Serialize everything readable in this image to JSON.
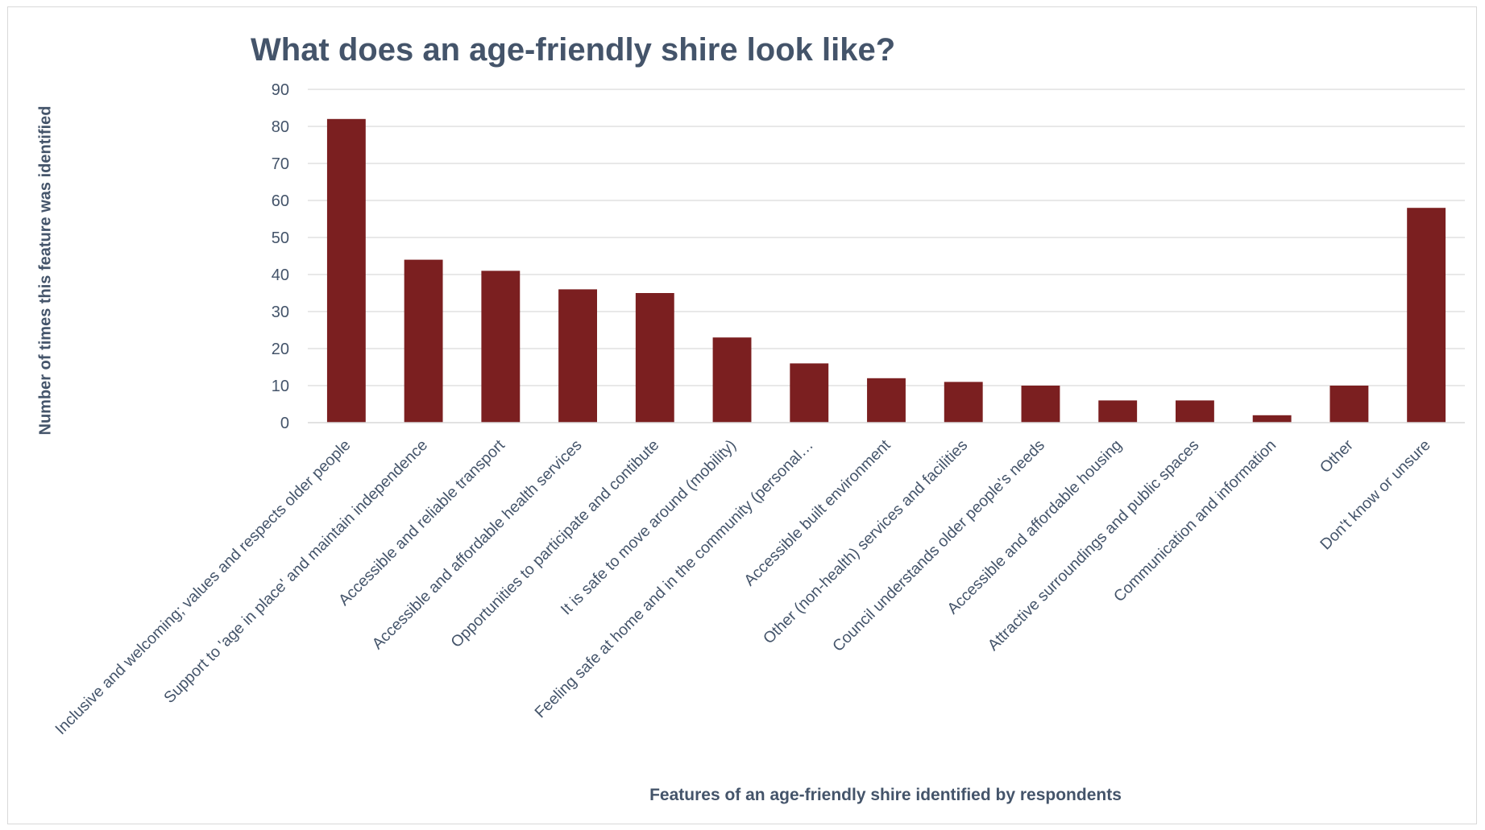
{
  "chart_data": {
    "type": "bar",
    "title": "What does an age-friendly shire look like?",
    "xlabel": "Features of an age-friendly shire identified by respondents",
    "ylabel": "Number of times this feature was identified",
    "ylim": [
      0,
      90
    ],
    "yticks": [
      0,
      10,
      20,
      30,
      40,
      50,
      60,
      70,
      80,
      90
    ],
    "grid": true,
    "legend": "none",
    "bar_color": "#7b1f20",
    "categories": [
      "Inclusive and welcoming; values and respects older people",
      "Support to 'age in place' and maintain independence",
      "Accessible and reliable transport",
      "Accessible and affordable health services",
      "Opportunities to participate and contibute",
      "It is safe to move around (mobility)",
      "Feeling safe at home and in the community (personal…",
      "Accessible built environment",
      "Other (non-health) services and facilities",
      "Council understands older people's needs",
      "Accessible and affordable housing",
      "Attractive surroundings and public spaces",
      "Communication and information",
      "Other",
      "Don't know or unsure"
    ],
    "values": [
      82,
      44,
      41,
      36,
      35,
      23,
      16,
      12,
      11,
      10,
      6,
      6,
      2,
      10,
      58
    ]
  }
}
